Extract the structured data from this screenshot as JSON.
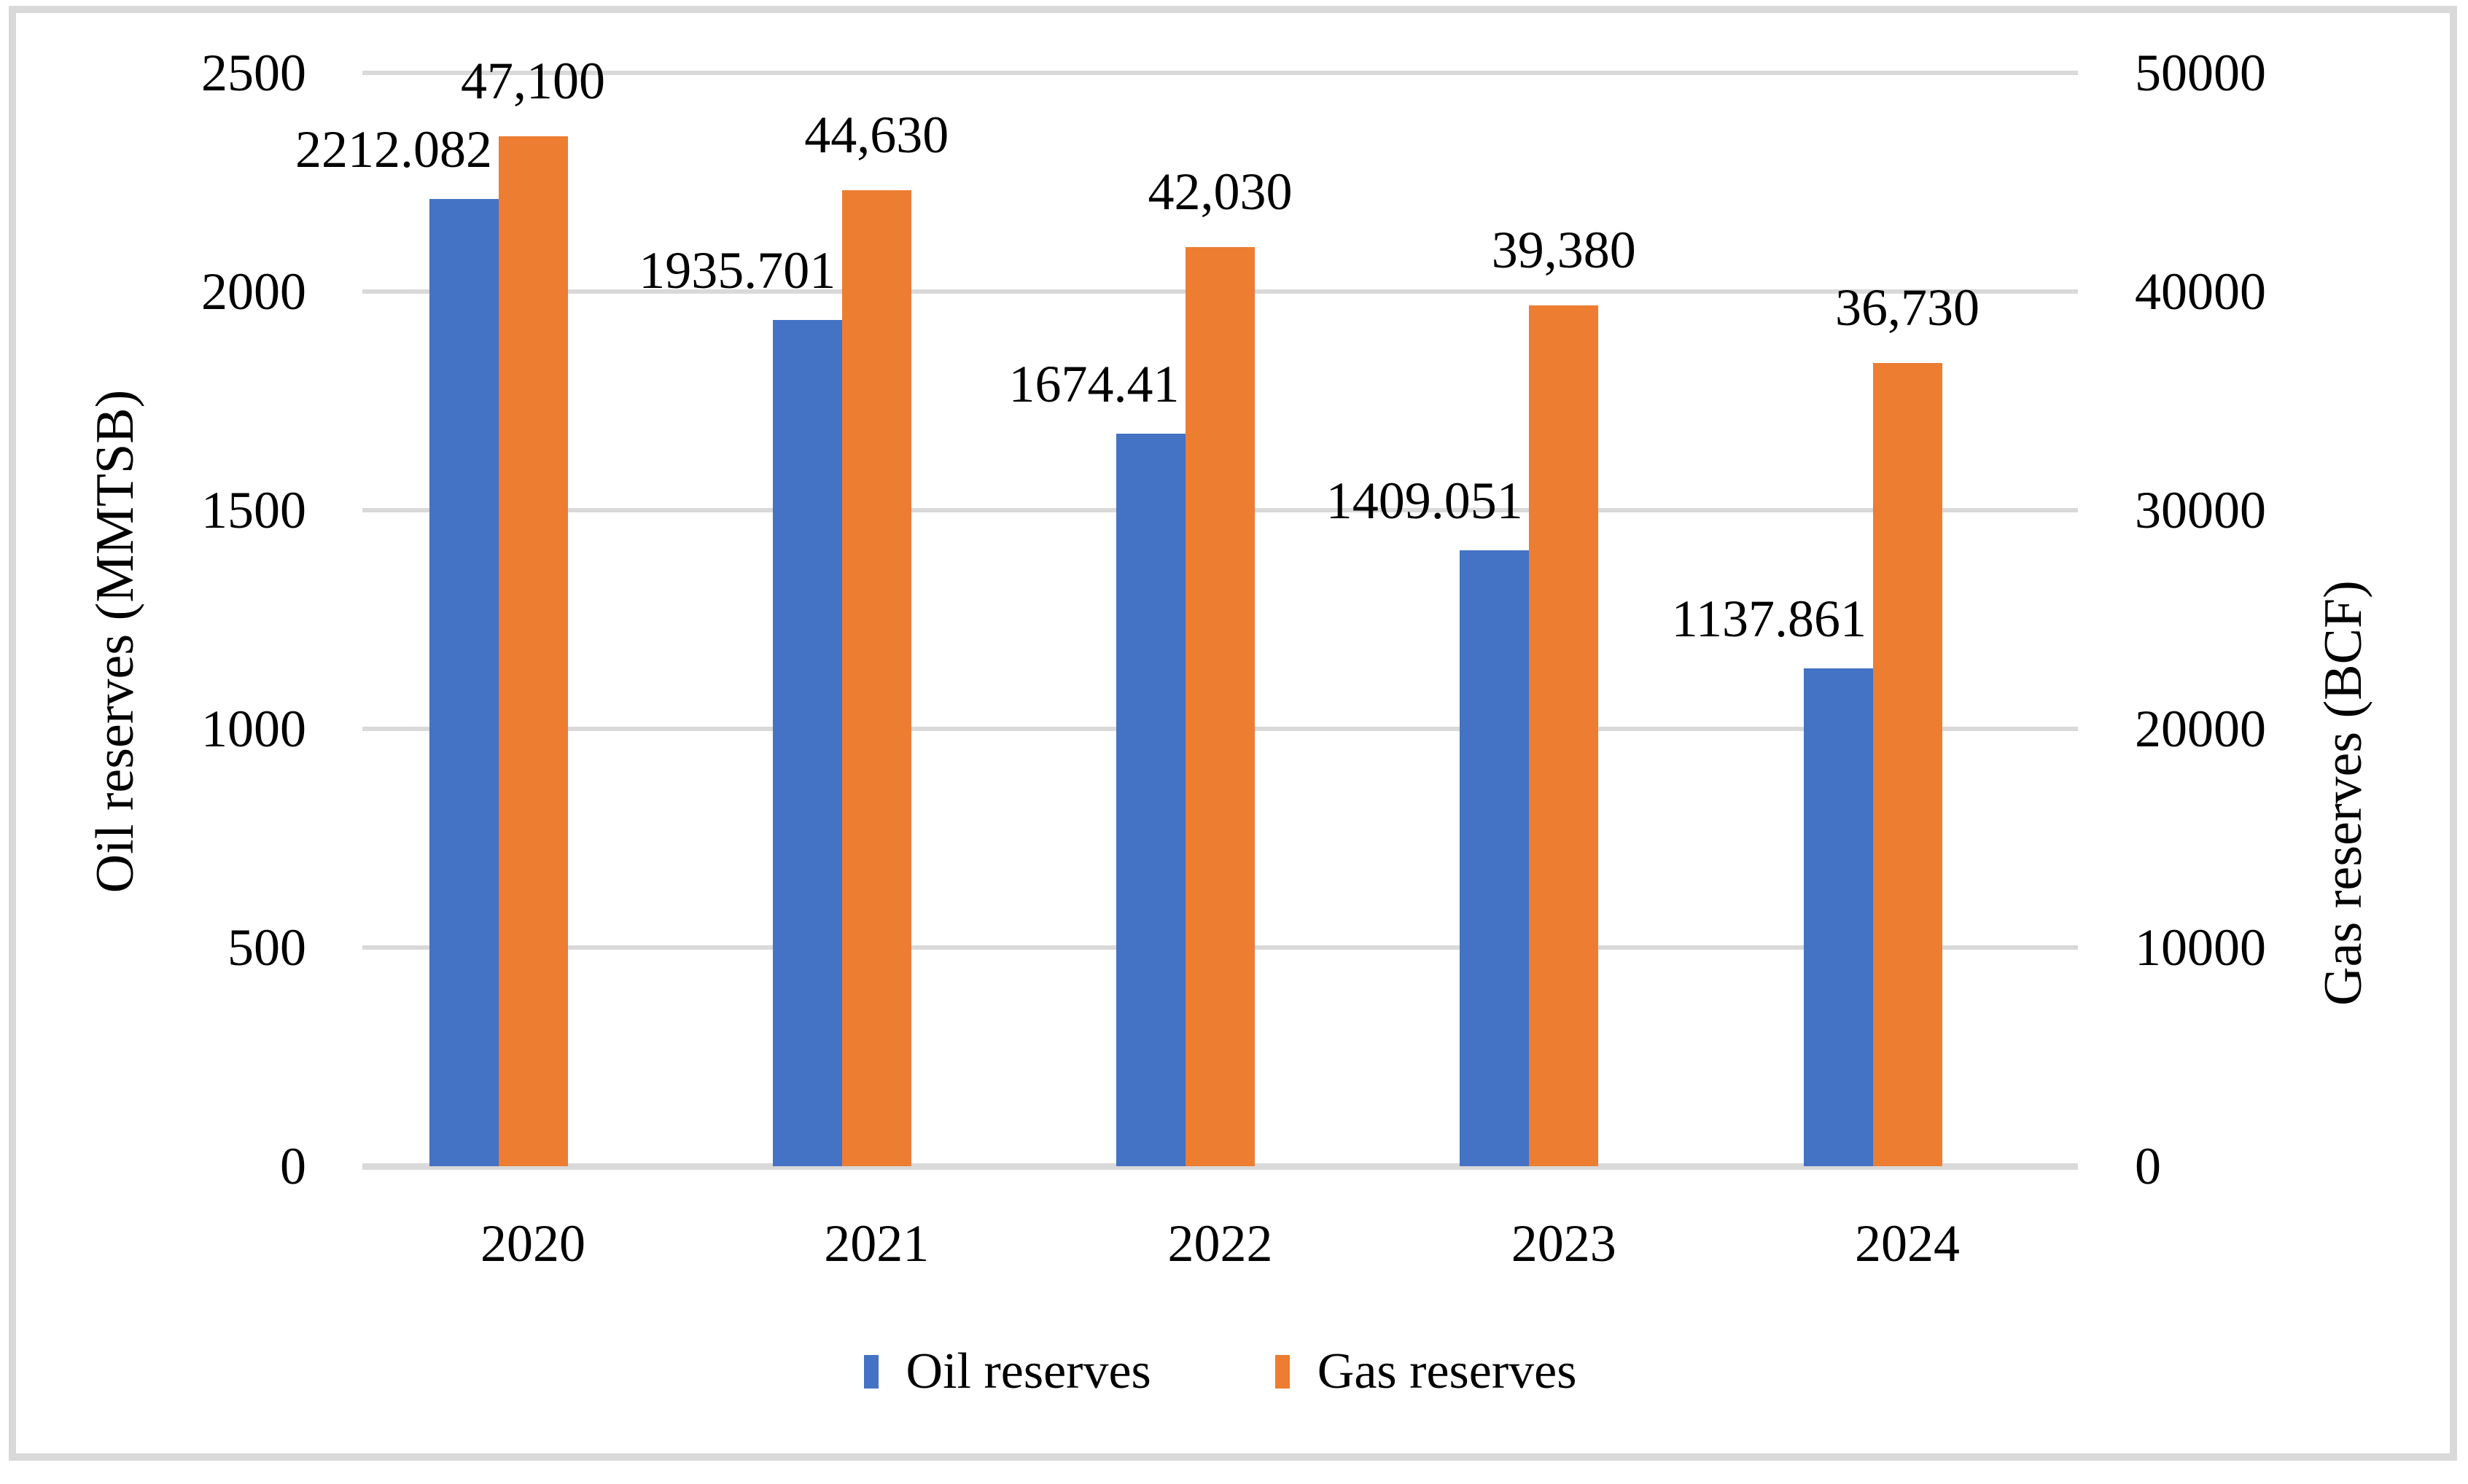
{
  "chart_data": {
    "type": "bar",
    "title": "",
    "categories": [
      "2020",
      "2021",
      "2022",
      "2023",
      "2024"
    ],
    "series": [
      {
        "name": "Oil reserves",
        "axis": "left",
        "color": "#4472C4",
        "values": [
          2212.082,
          1935.701,
          1674.41,
          1409.051,
          1137.861
        ],
        "data_labels": [
          "2212.082",
          "1935.701",
          "1674.41",
          "1409.051",
          "1137.861"
        ]
      },
      {
        "name": "Gas reserves",
        "axis": "right",
        "color": "#ED7D31",
        "values": [
          47100,
          44630,
          42030,
          39380,
          36730
        ],
        "data_labels": [
          "47,100",
          "44,630",
          "42,030",
          "39,380",
          "36,730"
        ]
      }
    ],
    "left_axis": {
      "label": "Oil reserves (MMTSB)",
      "min": 0,
      "max": 2500,
      "step": 500,
      "ticks": [
        "0",
        "500",
        "1000",
        "1500",
        "2000",
        "2500"
      ]
    },
    "right_axis": {
      "label": "Gas reserves (BCF)",
      "min": 0,
      "max": 50000,
      "step": 10000,
      "ticks": [
        "0",
        "10000",
        "20000",
        "30000",
        "40000",
        "50000"
      ]
    },
    "grid": true,
    "legend_position": "bottom",
    "legend": [
      "Oil reserves",
      "Gas reserves"
    ]
  },
  "colors": {
    "oil": "#4472C4",
    "gas": "#ED7D31",
    "gridline": "#D9D9D9",
    "frame_border": "#D9D9D9",
    "text": "#000000",
    "background": "#FFFFFF"
  }
}
